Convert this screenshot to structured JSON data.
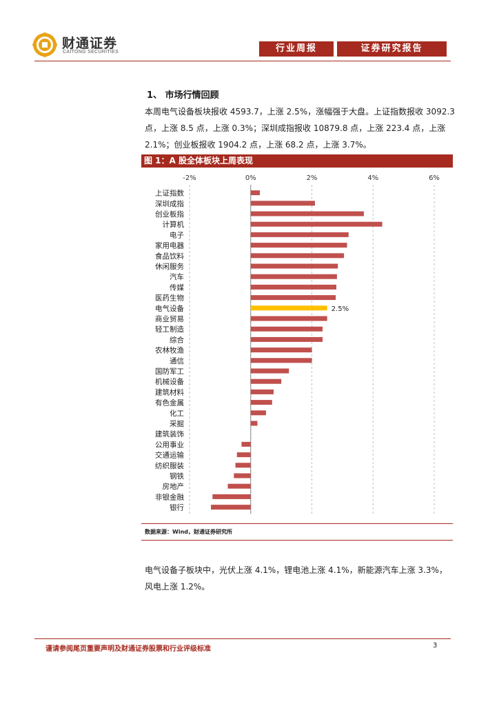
{
  "header": {
    "brand_cn": "财通证券",
    "brand_en": "CAITONG SECURITIES",
    "tab_weekly": "行业周报",
    "tab_research": "证券研究报告",
    "brand_color": "#a62a1f"
  },
  "section": {
    "title": "1、 市场行情回顾",
    "paragraph_lines": [
      "本周电气设备板块报收 4593.7，上涨 2.5%，涨幅强于大盘。上证指数报收 3092.3",
      "点，上涨 8.5 点，上涨 0.3%；深圳成指报收 10879.8 点，上涨 223.4 点，上涨",
      "2.1%；创业板报收 1904.2 点，上涨 68.2 点，上涨 3.7%。"
    ]
  },
  "figure": {
    "caption": "图 1：A 股全体板块上周表现",
    "source": "数据来源：Wind，财通证券研究所"
  },
  "chart_data": {
    "type": "bar",
    "orientation": "horizontal",
    "categories": [
      "上证指数",
      "深圳成指",
      "创业板指",
      "计算机",
      "电子",
      "家用电器",
      "食品饮料",
      "休闲服务",
      "汽车",
      "传媒",
      "医药生物",
      "电气设备",
      "商业贸易",
      "轻工制造",
      "综合",
      "农林牧渔",
      "通信",
      "国防军工",
      "机械设备",
      "建筑材料",
      "有色金属",
      "化工",
      "采掘",
      "建筑装饰",
      "公用事业",
      "交通运输",
      "纺织服装",
      "钢铁",
      "房地产",
      "非银金融",
      "银行"
    ],
    "values": [
      0.3,
      2.1,
      3.7,
      4.3,
      3.2,
      3.15,
      3.05,
      2.85,
      2.82,
      2.8,
      2.78,
      2.5,
      2.5,
      2.35,
      2.35,
      2.0,
      2.0,
      1.25,
      1.0,
      0.75,
      0.7,
      0.5,
      0.22,
      0.0,
      -0.3,
      -0.45,
      -0.5,
      -0.55,
      -0.75,
      -1.25,
      -1.3
    ],
    "highlight_index": 11,
    "highlight_label": "2.5%",
    "bar_color": "#c0504d",
    "highlight_color": "#ffc000",
    "xlim": [
      -2,
      6
    ],
    "xticks": [
      -2,
      0,
      2,
      4,
      6
    ],
    "xtick_labels": [
      "-2%",
      "0%",
      "2%",
      "4%",
      "6%"
    ],
    "xaxis_position": "top",
    "grid": true,
    "title": "图 1：A 股全体板块上周表现"
  },
  "subsection": {
    "paragraph_lines": [
      "电气设备子板块中，光伏上涨 4.1%，锂电池上涨 4.1%，新能源汽车上涨 3.3%，",
      "风电上涨 1.2%。"
    ]
  },
  "footer": {
    "disclaimer": "谨请参阅尾页重要声明及财通证券股票和行业评级标准",
    "page_number": "3"
  }
}
